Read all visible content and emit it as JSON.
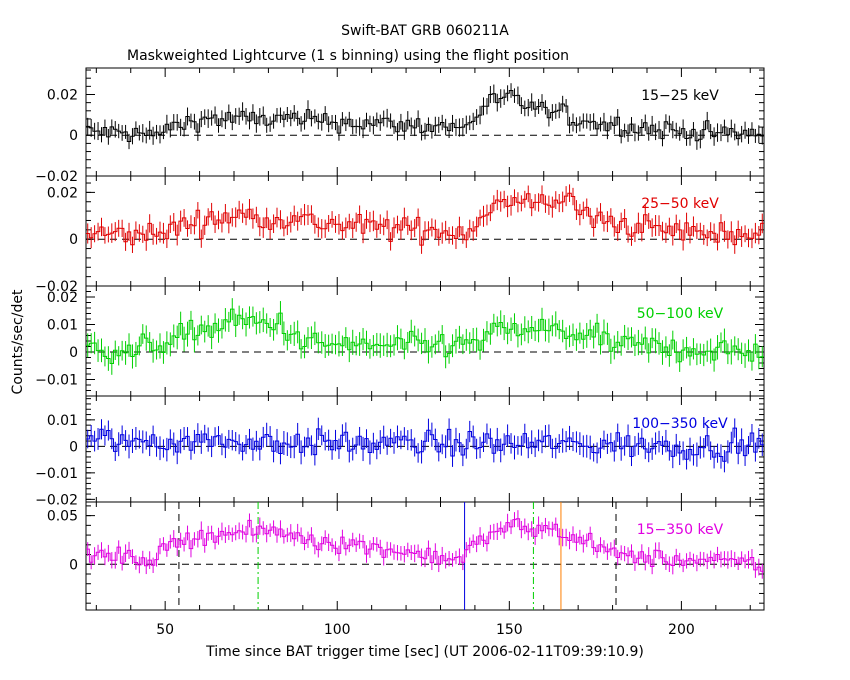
{
  "chart_data": {
    "type": "line",
    "title": "Swift-BAT GRB 060211A",
    "subtitle": "Maskweighted Lightcurve (1 s binning) using the flight position",
    "xlabel": "Time since BAT trigger time [sec] (UT 2006-02-11T09:39:10.9)",
    "ylabel": "Counts/sec/det",
    "xlim": [
      27,
      224
    ],
    "x_ticks": [
      50,
      100,
      150,
      200
    ],
    "panels": [
      {
        "name": "15-25 keV",
        "label": "15−25 keV",
        "color": "#000000",
        "ylim": [
          -0.02,
          0.033
        ],
        "y_ticks": [
          {
            "v": -0.02,
            "t": "−0.02"
          },
          {
            "v": 0,
            "t": "0"
          },
          {
            "v": 0.02,
            "t": "0.02"
          }
        ],
        "error": 0.004,
        "profile": [
          [
            27,
            0.002
          ],
          [
            47,
            0.0
          ],
          [
            52,
            0.004
          ],
          [
            60,
            0.008
          ],
          [
            80,
            0.008
          ],
          [
            95,
            0.007
          ],
          [
            120,
            0.005
          ],
          [
            138,
            0.004
          ],
          [
            143,
            0.016
          ],
          [
            150,
            0.018
          ],
          [
            160,
            0.012
          ],
          [
            175,
            0.006
          ],
          [
            200,
            0.002
          ],
          [
            224,
            0.0
          ]
        ],
        "noise": 0.0045
      },
      {
        "name": "25-50 keV",
        "label": "25−50 keV",
        "color": "#e00000",
        "ylim": [
          -0.02,
          0.027
        ],
        "y_ticks": [
          {
            "v": -0.02,
            "t": "−0.02"
          },
          {
            "v": 0,
            "t": "0"
          },
          {
            "v": 0.02,
            "t": "0.02"
          }
        ],
        "error": 0.004,
        "profile": [
          [
            27,
            0.002
          ],
          [
            48,
            0.002
          ],
          [
            55,
            0.006
          ],
          [
            70,
            0.01
          ],
          [
            85,
            0.009
          ],
          [
            100,
            0.006
          ],
          [
            125,
            0.004
          ],
          [
            138,
            0.003
          ],
          [
            145,
            0.015
          ],
          [
            155,
            0.015
          ],
          [
            165,
            0.018
          ],
          [
            175,
            0.008
          ],
          [
            200,
            0.003
          ],
          [
            224,
            0.002
          ]
        ],
        "noise": 0.0048
      },
      {
        "name": "50-100 keV",
        "label": "50−100 keV",
        "color": "#00d000",
        "ylim": [
          -0.016,
          0.024
        ],
        "y_ticks": [
          {
            "v": -0.01,
            "t": "−0.01"
          },
          {
            "v": 0,
            "t": "0"
          },
          {
            "v": 0.01,
            "t": "0.01"
          },
          {
            "v": 0.02,
            "t": "0.02"
          }
        ],
        "error": 0.004,
        "profile": [
          [
            27,
            0.002
          ],
          [
            40,
            0.0
          ],
          [
            55,
            0.006
          ],
          [
            70,
            0.011
          ],
          [
            84,
            0.01
          ],
          [
            90,
            0.003
          ],
          [
            120,
            0.002
          ],
          [
            140,
            0.003
          ],
          [
            148,
            0.008
          ],
          [
            165,
            0.008
          ],
          [
            180,
            0.003
          ],
          [
            200,
            0.001
          ],
          [
            224,
            0.0
          ]
        ],
        "noise": 0.0042
      },
      {
        "name": "100-350 keV",
        "label": "100−350 keV",
        "color": "#0000e0",
        "ylim": [
          -0.021,
          0.019
        ],
        "y_ticks": [
          {
            "v": -0.02,
            "t": "−0.02"
          },
          {
            "v": -0.01,
            "t": "−0.01"
          },
          {
            "v": 0,
            "t": "0"
          },
          {
            "v": 0.01,
            "t": "0.01"
          }
        ],
        "error": 0.004,
        "profile": [
          [
            27,
            0.002
          ],
          [
            60,
            0.002
          ],
          [
            100,
            0.001
          ],
          [
            140,
            0.001
          ],
          [
            160,
            0.001
          ],
          [
            200,
            0.0
          ],
          [
            224,
            0.0
          ]
        ],
        "noise": 0.0045
      },
      {
        "name": "15-350 keV",
        "label": "15−350 keV",
        "color": "#e000e0",
        "ylim": [
          -0.047,
          0.064
        ],
        "y_ticks": [
          {
            "v": 0,
            "t": "0"
          },
          {
            "v": 0.05,
            "t": "0.05"
          }
        ],
        "error": 0.008,
        "profile": [
          [
            27,
            0.01
          ],
          [
            47,
            0.005
          ],
          [
            53,
            0.022
          ],
          [
            60,
            0.03
          ],
          [
            82,
            0.034
          ],
          [
            95,
            0.024
          ],
          [
            120,
            0.013
          ],
          [
            136,
            0.005
          ],
          [
            140,
            0.02
          ],
          [
            150,
            0.04
          ],
          [
            165,
            0.034
          ],
          [
            175,
            0.02
          ],
          [
            180,
            0.01
          ],
          [
            200,
            0.004
          ],
          [
            224,
            0.0
          ]
        ],
        "noise": 0.0085,
        "markers": [
          {
            "x": 54,
            "color": "#000000",
            "style": "dashed"
          },
          {
            "x": 77,
            "color": "#00d000",
            "style": "dashdot"
          },
          {
            "x": 137,
            "color": "#0000e0",
            "style": "solid"
          },
          {
            "x": 157,
            "color": "#00d000",
            "style": "dashdot"
          },
          {
            "x": 165,
            "color": "#ff8000",
            "style": "solid"
          },
          {
            "x": 181,
            "color": "#000000",
            "style": "dashed"
          }
        ]
      }
    ]
  }
}
